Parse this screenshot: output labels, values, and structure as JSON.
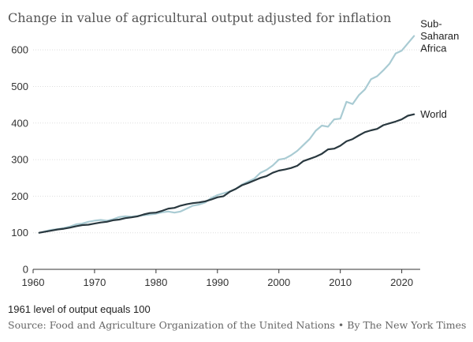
{
  "chart_data": {
    "type": "line",
    "title": "Change in value of agricultural output adjusted for inflation",
    "xlabel": "",
    "ylabel": "",
    "xlim": [
      1960,
      2023
    ],
    "ylim": [
      0,
      650
    ],
    "xticks": [
      1960,
      1970,
      1980,
      1990,
      2000,
      2010,
      2020
    ],
    "xtick_labels": [
      "1960",
      "1970",
      "1980",
      "1990",
      "2000",
      "2010",
      "2020"
    ],
    "yticks": [
      0,
      100,
      200,
      300,
      400,
      500,
      600
    ],
    "ytick_labels": [
      "0",
      "100",
      "200",
      "300",
      "400",
      "500",
      "600"
    ],
    "series": [
      {
        "name": "Sub-Saharan Africa",
        "label_lines": [
          "Sub-",
          "Saharan",
          "Africa"
        ],
        "color": "#a9cbd3",
        "x": [
          1961,
          1962,
          1963,
          1964,
          1965,
          1966,
          1967,
          1968,
          1969,
          1970,
          1971,
          1972,
          1973,
          1974,
          1975,
          1976,
          1977,
          1978,
          1979,
          1980,
          1981,
          1982,
          1983,
          1984,
          1985,
          1986,
          1987,
          1988,
          1989,
          1990,
          1991,
          1992,
          1993,
          1994,
          1995,
          1996,
          1997,
          1998,
          1999,
          2000,
          2001,
          2002,
          2003,
          2004,
          2005,
          2006,
          2007,
          2008,
          2009,
          2010,
          2011,
          2012,
          2013,
          2014,
          2015,
          2016,
          2017,
          2018,
          2019,
          2020,
          2021,
          2022
        ],
        "values": [
          100,
          104,
          108,
          110,
          113,
          117,
          123,
          125,
          130,
          133,
          135,
          133,
          137,
          143,
          145,
          144,
          146,
          148,
          150,
          152,
          156,
          158,
          155,
          158,
          166,
          174,
          177,
          183,
          195,
          203,
          208,
          213,
          220,
          232,
          240,
          248,
          264,
          272,
          284,
          300,
          303,
          312,
          324,
          340,
          356,
          379,
          393,
          390,
          410,
          412,
          458,
          452,
          476,
          492,
          520,
          528,
          544,
          562,
          590,
          598,
          618,
          638
        ]
      },
      {
        "name": "World",
        "label_lines": [
          "World"
        ],
        "color": "#29383f",
        "x": [
          1961,
          1962,
          1963,
          1964,
          1965,
          1966,
          1967,
          1968,
          1969,
          1970,
          1971,
          1972,
          1973,
          1974,
          1975,
          1976,
          1977,
          1978,
          1979,
          1980,
          1981,
          1982,
          1983,
          1984,
          1985,
          1986,
          1987,
          1988,
          1989,
          1990,
          1991,
          1992,
          1993,
          1994,
          1995,
          1996,
          1997,
          1998,
          1999,
          2000,
          2001,
          2002,
          2003,
          2004,
          2005,
          2006,
          2007,
          2008,
          2009,
          2010,
          2011,
          2012,
          2013,
          2014,
          2015,
          2016,
          2017,
          2018,
          2019,
          2020,
          2021,
          2022
        ],
        "values": [
          100,
          103,
          106,
          109,
          111,
          114,
          118,
          121,
          122,
          125,
          128,
          130,
          134,
          136,
          140,
          142,
          145,
          150,
          154,
          155,
          160,
          166,
          168,
          174,
          178,
          181,
          183,
          186,
          191,
          197,
          200,
          212,
          220,
          230,
          236,
          243,
          250,
          255,
          264,
          270,
          273,
          277,
          283,
          296,
          302,
          308,
          316,
          328,
          330,
          338,
          350,
          356,
          366,
          375,
          380,
          384,
          394,
          399,
          404,
          410,
          420,
          424
        ]
      }
    ]
  },
  "note": "1961 level of output equals 100",
  "source": "Source: Food and Agriculture Organization of the United Nations • By The New York Times"
}
